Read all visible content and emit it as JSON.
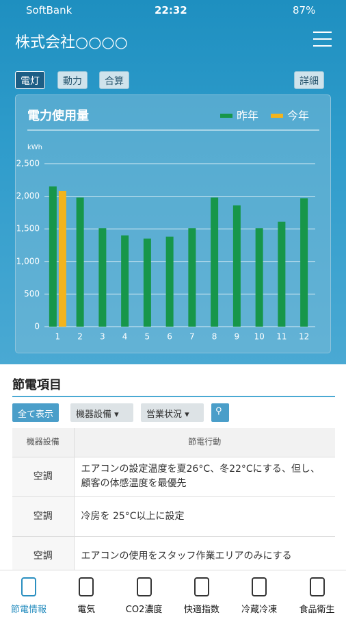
{
  "status_bar": {
    "carrier": "SoftBank",
    "time": "22:32",
    "battery": "87%"
  },
  "header": {
    "title": "株式会社○○○○"
  },
  "tabs": [
    "電灯",
    "動力",
    "合算"
  ],
  "detail_button": "詳細",
  "chart_data": {
    "type": "bar",
    "title": "電力使用量",
    "y_unit": "kWh",
    "categories": [
      "1",
      "2",
      "3",
      "4",
      "5",
      "6",
      "7",
      "8",
      "9",
      "10",
      "11",
      "12"
    ],
    "series": [
      {
        "name": "昨年",
        "color": "#17964a",
        "values": [
          2150,
          1980,
          1510,
          1400,
          1350,
          1380,
          1510,
          1980,
          1860,
          1510,
          1610,
          1970
        ]
      },
      {
        "name": "今年",
        "color": "#f2b41d",
        "values": [
          2080,
          null,
          null,
          null,
          null,
          null,
          null,
          null,
          null,
          null,
          null,
          null
        ]
      }
    ],
    "ylim": [
      0,
      2500
    ],
    "yticks": [
      0,
      500,
      {
        "value": 1000,
        "label": "1,000"
      },
      {
        "value": 1500,
        "label": "1,500"
      },
      {
        "value": 2000,
        "label": "2,000"
      },
      {
        "value": 2500,
        "label": "2,500"
      }
    ],
    "grid": true
  },
  "section": {
    "title": "節電項目",
    "filters": [
      "全て表示",
      "機器設備",
      "営業状況"
    ]
  },
  "table": {
    "header": [
      "機器設備",
      "節電行動"
    ],
    "rows": [
      [
        "空調",
        "エアコンの設定温度を夏26°C、冬22°Cにする、但し、顧客の体感温度を最優先"
      ],
      [
        "空調",
        "冷房を 25°C以上に設定"
      ],
      [
        "空調",
        "エアコンの使用をスタッフ作業エリアのみにする"
      ]
    ]
  },
  "bottom_nav": [
    "節電情報",
    "電気",
    "CO2濃度",
    "快適指数",
    "冷蔵冷凍",
    "食品衛生"
  ]
}
